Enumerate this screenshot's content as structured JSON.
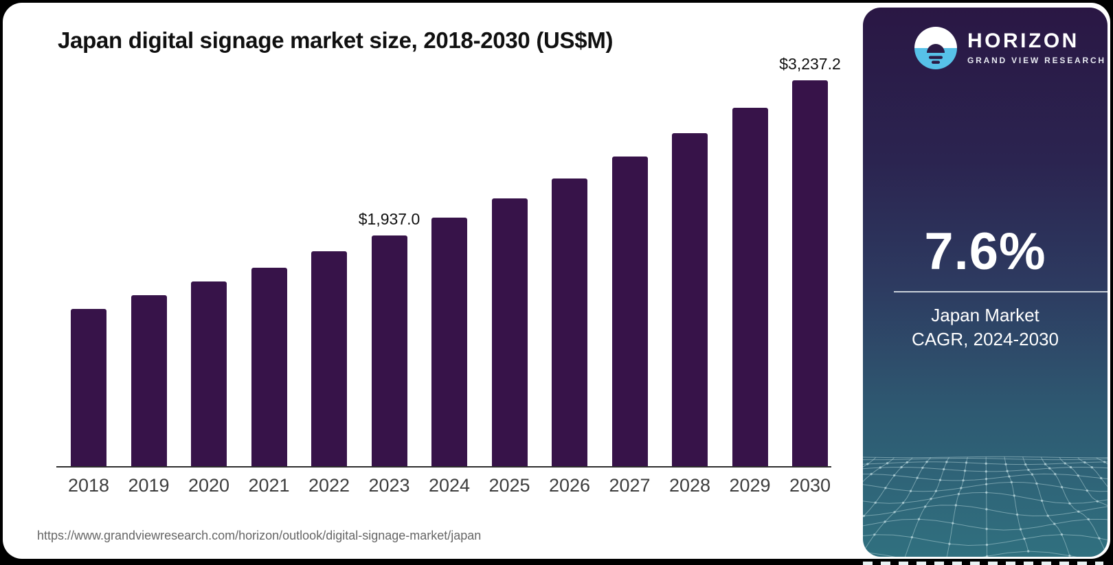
{
  "page": {
    "url_footer": "https://www.grandviewresearch.com/horizon/outlook/digital-signage-market/japan",
    "background_color": "#000000",
    "card_color": "#ffffff"
  },
  "chart_data": {
    "type": "bar",
    "title": "Japan digital signage market size, 2018-2030 (US$M)",
    "categories": [
      "2018",
      "2019",
      "2020",
      "2021",
      "2022",
      "2023",
      "2024",
      "2025",
      "2026",
      "2027",
      "2028",
      "2029",
      "2030"
    ],
    "values": [
      1316.8,
      1435.2,
      1547.3,
      1665.4,
      1801.1,
      1937.0,
      2085.9,
      2244.4,
      2415.0,
      2598.5,
      2796.0,
      3008.5,
      3237.2
    ],
    "value_labels": [
      {
        "category": "2023",
        "text": "$1,937.0"
      },
      {
        "category": "2030",
        "text": "$3,237.2"
      }
    ],
    "note": "Only 2023 and 2030 carry printed data labels; other values estimated from bar heights",
    "xlabel": "",
    "ylabel": "",
    "ylim": [
      0,
      3237.2
    ],
    "grid": false,
    "legend": false,
    "bar_color": "#371349",
    "axis_line_color": "#2e2e2e",
    "tick_label_color": "#3d3d3d"
  },
  "sidebar": {
    "brand": {
      "name": "HORIZON",
      "subtitle": "GRAND VIEW RESEARCH",
      "logo": "horizon-sunrise-icon",
      "logo_blue": "#57c1e8",
      "logo_dark": "#2b1a44"
    },
    "stat": {
      "value": "7.6%",
      "caption_line1": "Japan Market",
      "caption_line2": "CAGR, 2024-2030"
    },
    "colors": {
      "gradient_top": "#2a1744",
      "gradient_bottom": "#30707f",
      "mesh_line": "#bcd9de"
    }
  }
}
